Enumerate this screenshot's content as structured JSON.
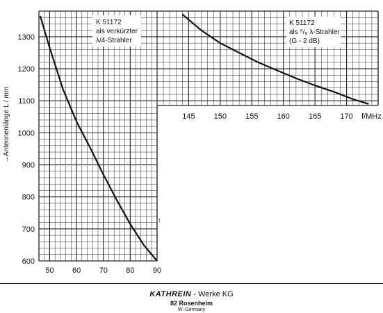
{
  "chart_data": [
    {
      "type": "line",
      "panel": "left",
      "xlim": [
        46,
        90
      ],
      "ylim": [
        600,
        1380
      ],
      "xticks": [
        50,
        60,
        70,
        80,
        90
      ],
      "yticks": [
        600,
        700,
        800,
        900,
        1000,
        1100,
        1200,
        1300
      ],
      "xtick_labels": [
        "50",
        "60",
        "70",
        "80",
        "90"
      ],
      "ytick_labels": [
        "600",
        "700",
        "800",
        "900",
        "1000",
        "1100",
        "1200",
        "1300"
      ],
      "ylabel": "Antennenlänge  L / mm",
      "ylabel_inner": "Antennenlänge  L / mm",
      "annotation": [
        "K 51172",
        "als verkürzter",
        "λ/4-Strahler"
      ],
      "grid": true,
      "series": [
        {
          "x": [
            46.5,
            50,
            55,
            60,
            65,
            70,
            75,
            80,
            85,
            90
          ],
          "y": [
            1365,
            1265,
            1135,
            1035,
            955,
            870,
            790,
            715,
            650,
            600
          ]
        }
      ]
    },
    {
      "type": "line",
      "panel": "right",
      "xlim": [
        140,
        175
      ],
      "ylim": [
        1100,
        1380
      ],
      "xticks": [
        145,
        150,
        155,
        160,
        165,
        170
      ],
      "yticks": [
        1100,
        1200,
        1300
      ],
      "xtick_labels": [
        "145",
        "150",
        "155",
        "160",
        "165",
        "170"
      ],
      "xlabel": "f/MHz",
      "annotation": [
        "K 51172",
        "als ⁵/₈ λ-Strahler",
        "(G - 2 dB)"
      ],
      "grid": true,
      "series": [
        {
          "x": [
            144,
            147,
            150,
            153,
            156,
            159,
            162,
            165,
            168,
            171,
            173.5
          ],
          "y": [
            1370,
            1320,
            1280,
            1250,
            1220,
            1195,
            1170,
            1148,
            1128,
            1105,
            1090
          ]
        }
      ]
    }
  ],
  "footer": {
    "brand": "KATHREIN",
    "rest": " - Werke KG",
    "city": "82 Rosenheim",
    "country": "W.-Germany"
  },
  "colors": {
    "line": "#111111",
    "grid": "#222222",
    "bg": "#ffffff"
  }
}
